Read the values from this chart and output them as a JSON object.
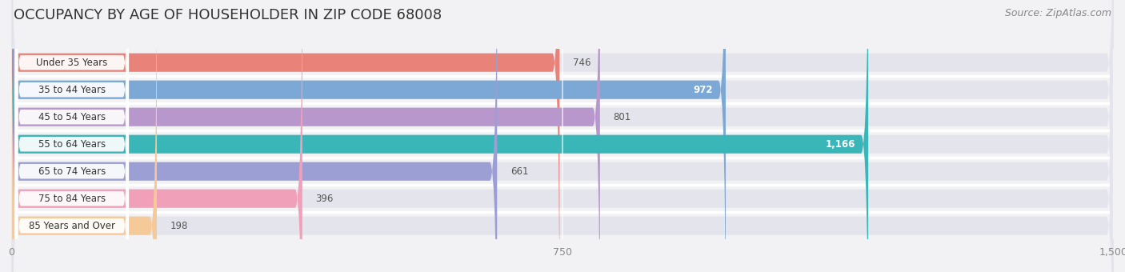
{
  "title": "OCCUPANCY BY AGE OF HOUSEHOLDER IN ZIP CODE 68008",
  "source": "Source: ZipAtlas.com",
  "categories": [
    "Under 35 Years",
    "35 to 44 Years",
    "45 to 54 Years",
    "55 to 64 Years",
    "65 to 74 Years",
    "75 to 84 Years",
    "85 Years and Over"
  ],
  "values": [
    746,
    972,
    801,
    1166,
    661,
    396,
    198
  ],
  "bar_colors": [
    "#e8837a",
    "#7ba8d4",
    "#b898cc",
    "#3ab5b8",
    "#9b9fd4",
    "#f0a0b8",
    "#f5c998"
  ],
  "xlim": [
    0,
    1500
  ],
  "xticks": [
    0,
    750,
    1500
  ],
  "background_color": "#f2f2f5",
  "bar_background": "#e4e4ec",
  "row_bg": "#f8f8fb",
  "title_fontsize": 13,
  "source_fontsize": 9,
  "value_inside_threshold": 900
}
